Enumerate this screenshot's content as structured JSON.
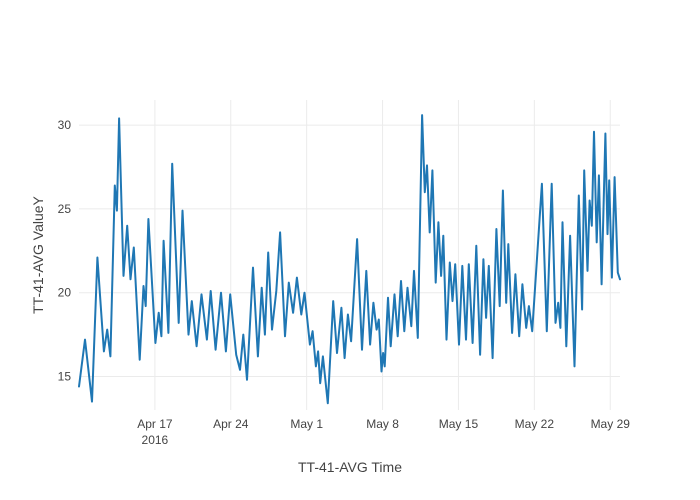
{
  "chart_data": {
    "type": "line",
    "title": "",
    "xlabel": "TT-41-AVG Time",
    "ylabel": "TT-41-AVG ValueY",
    "legend": false,
    "grid": true,
    "background": "#ffffff",
    "grid_color": "#ebebeb",
    "tick_color": "#444444",
    "line_color": "#1f77b4",
    "line_width": 2,
    "x_axis": {
      "unit": "days (day 0 = start of visible trace, Apr 10 2016)",
      "range": [
        0,
        49.9
      ],
      "ticks": [
        {
          "day": 7,
          "label": "Apr 17",
          "sublabel": "2016"
        },
        {
          "day": 14,
          "label": "Apr 24",
          "sublabel": ""
        },
        {
          "day": 21,
          "label": "May 1",
          "sublabel": ""
        },
        {
          "day": 28,
          "label": "May 8",
          "sublabel": ""
        },
        {
          "day": 35,
          "label": "May 15",
          "sublabel": ""
        },
        {
          "day": 42,
          "label": "May 22",
          "sublabel": ""
        },
        {
          "day": 49,
          "label": "May 29",
          "sublabel": ""
        }
      ]
    },
    "y_axis": {
      "range": [
        13.0,
        31.5
      ],
      "ticks": [
        15,
        20,
        25,
        30
      ]
    },
    "series": [
      {
        "name": "TT-41-AVG",
        "points": [
          [
            0,
            14.4
          ],
          [
            0.55,
            17.2
          ],
          [
            1.2,
            13.5
          ],
          [
            1.7,
            22.1
          ],
          [
            2.3,
            16.5
          ],
          [
            2.6,
            17.8
          ],
          [
            2.9,
            16.2
          ],
          [
            3.3,
            26.4
          ],
          [
            3.5,
            24.9
          ],
          [
            3.7,
            30.4
          ],
          [
            4.1,
            21.0
          ],
          [
            4.45,
            24.0
          ],
          [
            4.75,
            20.8
          ],
          [
            5.05,
            22.7
          ],
          [
            5.6,
            16.0
          ],
          [
            5.95,
            20.4
          ],
          [
            6.15,
            19.2
          ],
          [
            6.4,
            24.4
          ],
          [
            7.05,
            17.0
          ],
          [
            7.35,
            18.8
          ],
          [
            7.6,
            17.4
          ],
          [
            7.8,
            23.1
          ],
          [
            8.25,
            17.6
          ],
          [
            8.6,
            27.7
          ],
          [
            9.2,
            18.2
          ],
          [
            9.55,
            24.9
          ],
          [
            10.1,
            17.5
          ],
          [
            10.4,
            19.5
          ],
          [
            10.85,
            16.8
          ],
          [
            11.3,
            19.9
          ],
          [
            11.8,
            17.2
          ],
          [
            12.15,
            20.1
          ],
          [
            12.6,
            16.6
          ],
          [
            13.1,
            20.0
          ],
          [
            13.55,
            16.5
          ],
          [
            13.95,
            19.9
          ],
          [
            14.5,
            16.3
          ],
          [
            14.85,
            15.4
          ],
          [
            15.15,
            17.5
          ],
          [
            15.5,
            14.8
          ],
          [
            16.05,
            21.5
          ],
          [
            16.5,
            16.2
          ],
          [
            16.85,
            20.3
          ],
          [
            17.15,
            17.5
          ],
          [
            17.45,
            22.4
          ],
          [
            17.8,
            17.8
          ],
          [
            18.2,
            20.1
          ],
          [
            18.55,
            23.6
          ],
          [
            19.0,
            17.4
          ],
          [
            19.35,
            20.6
          ],
          [
            19.75,
            18.8
          ],
          [
            20.1,
            20.9
          ],
          [
            20.5,
            18.7
          ],
          [
            20.8,
            20.0
          ],
          [
            21.3,
            16.9
          ],
          [
            21.55,
            17.7
          ],
          [
            21.85,
            15.6
          ],
          [
            22.05,
            16.5
          ],
          [
            22.25,
            14.6
          ],
          [
            22.5,
            16.2
          ],
          [
            22.95,
            13.4
          ],
          [
            23.45,
            19.5
          ],
          [
            23.8,
            16.4
          ],
          [
            24.2,
            19.1
          ],
          [
            24.5,
            16.1
          ],
          [
            24.8,
            18.7
          ],
          [
            25.1,
            17.1
          ],
          [
            25.65,
            23.2
          ],
          [
            26.1,
            16.6
          ],
          [
            26.5,
            21.3
          ],
          [
            26.85,
            16.9
          ],
          [
            27.15,
            19.4
          ],
          [
            27.45,
            17.8
          ],
          [
            27.65,
            18.4
          ],
          [
            27.9,
            15.3
          ],
          [
            28.05,
            16.4
          ],
          [
            28.2,
            15.6
          ],
          [
            28.5,
            19.7
          ],
          [
            28.75,
            16.8
          ],
          [
            29.1,
            19.9
          ],
          [
            29.4,
            17.4
          ],
          [
            29.7,
            20.7
          ],
          [
            30.0,
            17.7
          ],
          [
            30.3,
            20.3
          ],
          [
            30.65,
            18.0
          ],
          [
            30.9,
            21.3
          ],
          [
            31.25,
            17.3
          ],
          [
            31.65,
            30.6
          ],
          [
            31.9,
            26.0
          ],
          [
            32.1,
            27.6
          ],
          [
            32.35,
            23.6
          ],
          [
            32.6,
            27.3
          ],
          [
            32.9,
            20.6
          ],
          [
            33.15,
            24.2
          ],
          [
            33.4,
            21.0
          ],
          [
            33.6,
            23.4
          ],
          [
            33.9,
            17.2
          ],
          [
            34.2,
            21.8
          ],
          [
            34.45,
            19.5
          ],
          [
            34.7,
            21.7
          ],
          [
            35.05,
            16.9
          ],
          [
            35.35,
            21.6
          ],
          [
            35.7,
            17.2
          ],
          [
            35.95,
            21.7
          ],
          [
            36.3,
            17.0
          ],
          [
            36.65,
            22.8
          ],
          [
            37.0,
            16.3
          ],
          [
            37.3,
            22.0
          ],
          [
            37.55,
            18.5
          ],
          [
            37.8,
            21.6
          ],
          [
            38.15,
            16.1
          ],
          [
            38.5,
            23.8
          ],
          [
            38.8,
            19.2
          ],
          [
            39.1,
            26.1
          ],
          [
            39.4,
            19.4
          ],
          [
            39.6,
            22.9
          ],
          [
            39.95,
            17.6
          ],
          [
            40.25,
            21.1
          ],
          [
            40.6,
            17.4
          ],
          [
            40.9,
            20.5
          ],
          [
            41.25,
            17.9
          ],
          [
            41.5,
            19.2
          ],
          [
            41.8,
            17.7
          ],
          [
            42.7,
            26.5
          ],
          [
            43.15,
            17.7
          ],
          [
            43.6,
            26.5
          ],
          [
            43.95,
            18.2
          ],
          [
            44.2,
            19.4
          ],
          [
            44.4,
            17.9
          ],
          [
            44.6,
            24.2
          ],
          [
            44.95,
            16.8
          ],
          [
            45.3,
            23.4
          ],
          [
            45.7,
            15.6
          ],
          [
            46.1,
            25.8
          ],
          [
            46.4,
            19.0
          ],
          [
            46.6,
            27.3
          ],
          [
            46.9,
            21.3
          ],
          [
            47.1,
            25.5
          ],
          [
            47.3,
            24.0
          ],
          [
            47.5,
            29.6
          ],
          [
            47.75,
            23.0
          ],
          [
            47.95,
            27.0
          ],
          [
            48.2,
            20.5
          ],
          [
            48.55,
            29.5
          ],
          [
            48.75,
            23.5
          ],
          [
            48.9,
            26.7
          ],
          [
            49.15,
            20.9
          ],
          [
            49.4,
            26.9
          ],
          [
            49.7,
            21.2
          ],
          [
            49.9,
            20.8
          ]
        ]
      }
    ]
  }
}
